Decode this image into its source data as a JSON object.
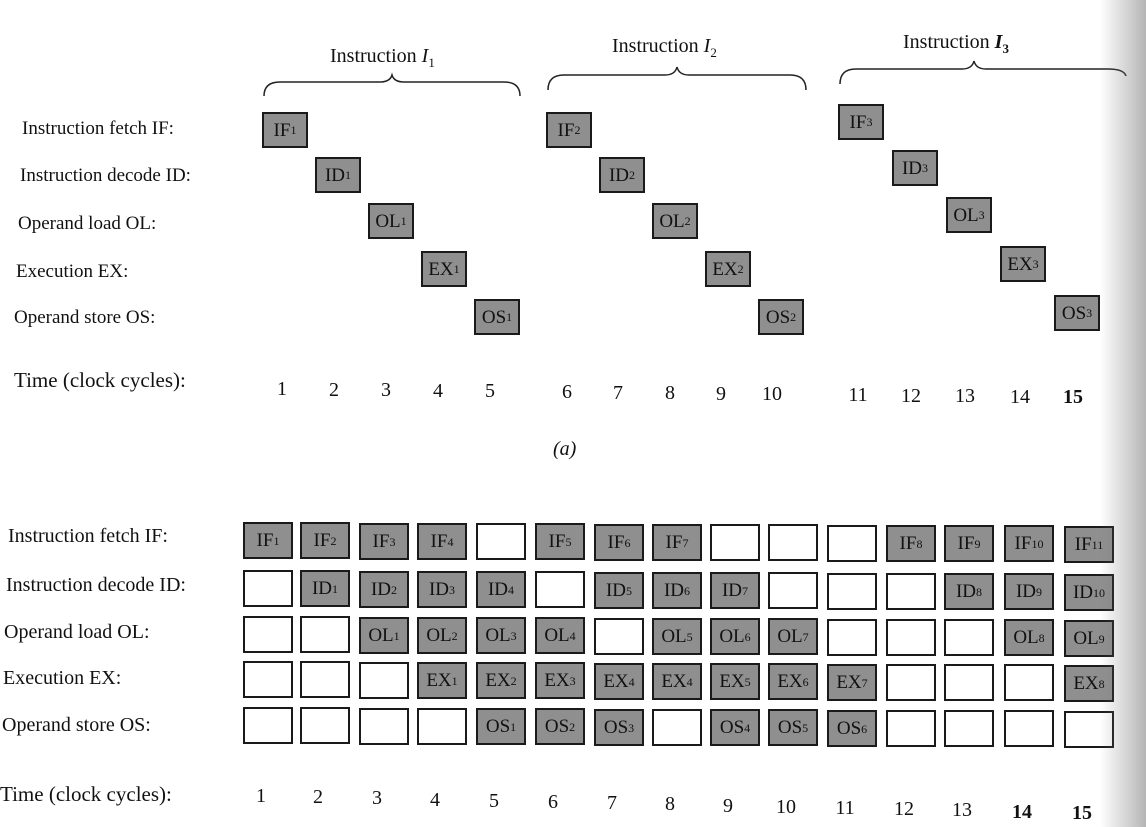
{
  "part_a": {
    "instructions": [
      {
        "label": "Instruction ",
        "var": "I",
        "sub": "1"
      },
      {
        "label": "Instruction ",
        "var": "I",
        "sub": "2"
      },
      {
        "label": "Instruction ",
        "var": "I",
        "sub": "3"
      }
    ],
    "stages": [
      "Instruction fetch IF:",
      "Instruction decode ID:",
      "Operand load OL:",
      "Execution EX:",
      "Operand store OS:"
    ],
    "stage_codes": [
      "IF",
      "ID",
      "OL",
      "EX",
      "OS"
    ],
    "time_label": "Time (clock cycles):",
    "ticks": [
      "1",
      "2",
      "3",
      "4",
      "5",
      "6",
      "7",
      "8",
      "9",
      "10",
      "11",
      "12",
      "13",
      "14",
      "15"
    ],
    "caption": "(a)"
  },
  "part_b": {
    "stages": [
      "Instruction fetch IF:",
      "Instruction decode ID:",
      "Operand load OL:",
      "Execution EX:",
      "Operand store OS:"
    ],
    "time_label": "Time (clock cycles):",
    "ticks": [
      "1",
      "2",
      "3",
      "4",
      "5",
      "6",
      "7",
      "8",
      "9",
      "10",
      "11",
      "12",
      "13",
      "14",
      "15"
    ],
    "grid": [
      [
        "IF|1",
        "IF|2",
        "IF|3",
        "IF|4",
        "",
        "IF|5",
        "IF|6",
        "IF|7",
        "",
        "",
        "",
        "IF|8",
        "IF|9",
        "IF|10",
        "IF|11"
      ],
      [
        "",
        "ID|1",
        "ID|2",
        "ID|3",
        "ID|4",
        "",
        "ID|5",
        "ID|6",
        "ID|7",
        "",
        "",
        "",
        "ID|8",
        "ID|9",
        "ID|10"
      ],
      [
        "",
        "",
        "OL|1",
        "OL|2",
        "OL|3",
        "OL|4",
        "",
        "OL|5",
        "OL|6",
        "OL|7",
        "",
        "",
        "",
        "OL|8",
        "OL|9"
      ],
      [
        "",
        "",
        "",
        "EX|1",
        "EX|2",
        "EX|3",
        "EX|4",
        "EX|4",
        "EX|5",
        "EX|6",
        "EX|7",
        "",
        "",
        "",
        "EX|8"
      ],
      [
        "",
        "",
        "",
        "",
        "OS|1",
        "OS|2",
        "OS|3",
        "",
        "OS|4",
        "OS|5",
        "OS|6",
        "",
        "",
        "",
        ""
      ]
    ]
  }
}
